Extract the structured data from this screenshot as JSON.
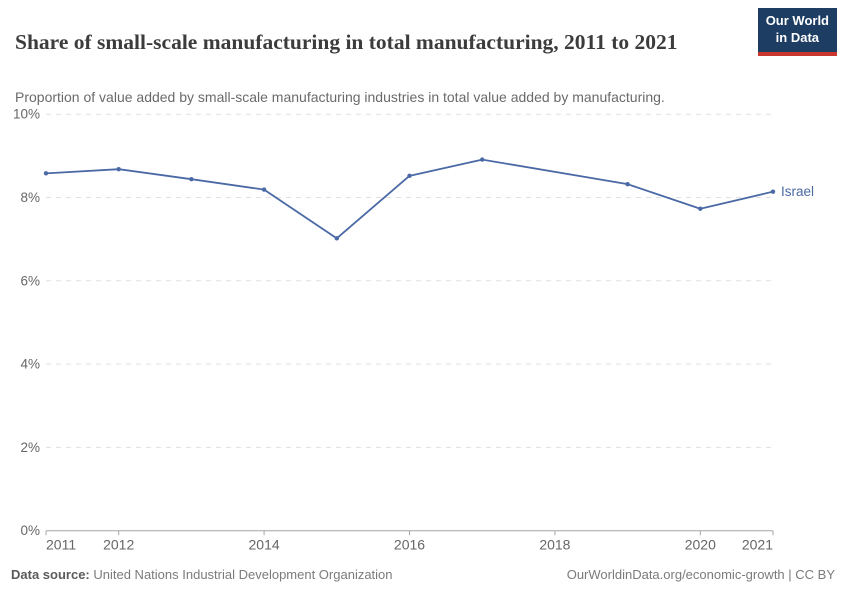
{
  "header": {
    "title": "Share of small-scale manufacturing in total manufacturing, 2011 to 2021",
    "subtitle": "Proportion of value added by small-scale manufacturing industries in total value added by manufacturing.",
    "logo": {
      "line1": "Our World",
      "line2": "in Data"
    }
  },
  "chart_data": {
    "type": "line",
    "title": "Share of small-scale manufacturing in total manufacturing, 2011 to 2021",
    "subtitle": "Proportion of value added by small-scale manufacturing industries in total value added by manufacturing.",
    "x": [
      2011,
      2012,
      2013,
      2014,
      2015,
      2016,
      2017,
      2018,
      2019,
      2020,
      2021
    ],
    "series": [
      {
        "name": "Israel",
        "color": "#4a69a5",
        "values": [
          8.58,
          8.68,
          8.44,
          8.19,
          7.02,
          8.52,
          8.91,
          null,
          8.32,
          7.73,
          8.14
        ]
      }
    ],
    "xlim": [
      2011,
      2021
    ],
    "ylim": [
      0,
      10
    ],
    "xticks": [
      2011,
      2012,
      2014,
      2016,
      2018,
      2020,
      2021
    ],
    "yticks": [
      0,
      2,
      4,
      6,
      8,
      10
    ],
    "ytick_suffix": "%",
    "grid": "horizontal-dashed",
    "legend": "end-of-line-label"
  },
  "footer": {
    "source_label": "Data source:",
    "source_value": " United Nations Industrial Development Organization",
    "right_text": "OurWorldinData.org/economic-growth | CC BY"
  },
  "colors": {
    "series_blue": "#4a69a5",
    "logo_bg": "#1d3d63",
    "logo_accent": "#c9362e",
    "grid": "#e0e0e0",
    "axis": "#a5a5a5",
    "tick_label": "#666666"
  }
}
